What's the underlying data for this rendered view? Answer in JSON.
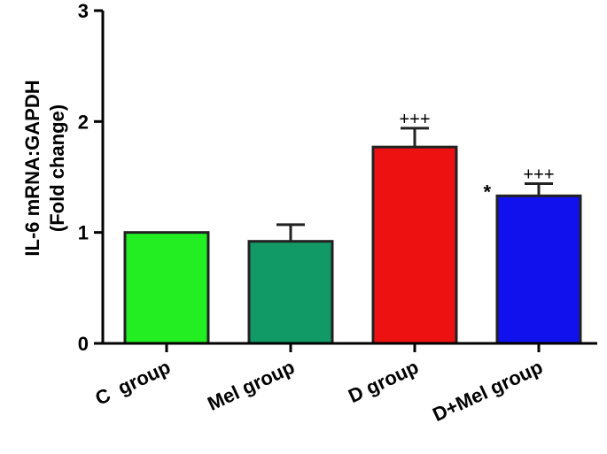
{
  "chart_data": {
    "type": "bar",
    "categories": [
      "C  group",
      "Mel group",
      "D group",
      "D+Mel group"
    ],
    "values": [
      1.0,
      0.92,
      1.77,
      1.33
    ],
    "errors": [
      0,
      0.15,
      0.17,
      0.11
    ],
    "colors": [
      "#22ee22",
      "#119966",
      "#ee1111",
      "#1111ee"
    ],
    "annotations": [
      {
        "index": 2,
        "above_error": "+++",
        "left": ""
      },
      {
        "index": 3,
        "above_error": "+++",
        "left": "*"
      }
    ],
    "title": "",
    "xlabel": "",
    "ylabel_line1": "IL-6 mRNA:GAPDH",
    "ylabel_line2": "(Fold change)",
    "ylim": [
      0,
      3
    ],
    "yticks": [
      "0",
      "1",
      "2",
      "3"
    ],
    "grid": false
  }
}
